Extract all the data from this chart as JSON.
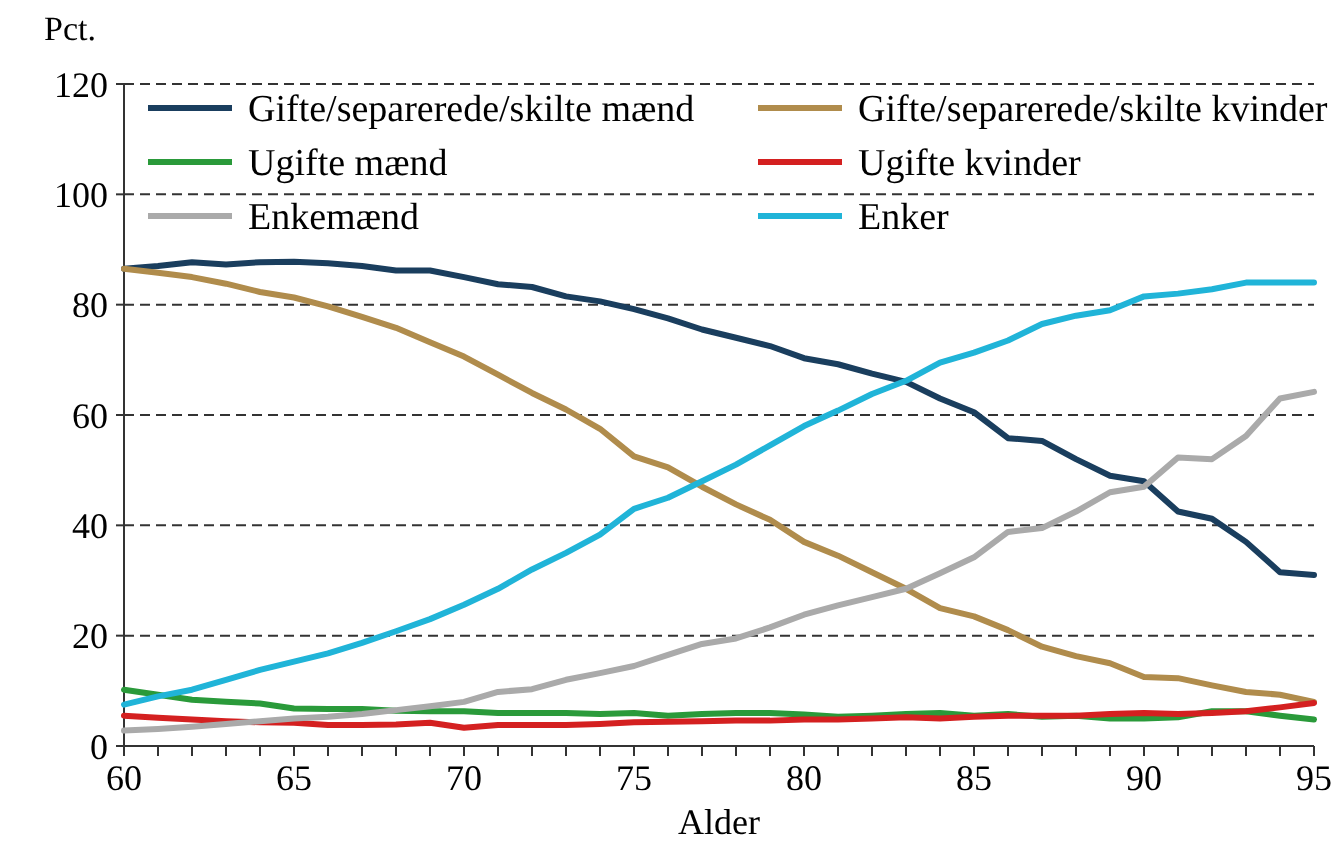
{
  "chart_data": {
    "type": "line",
    "ylabel": "Pct.",
    "xlabel": "Alder",
    "x": [
      60,
      61,
      62,
      63,
      64,
      65,
      66,
      67,
      68,
      69,
      70,
      71,
      72,
      73,
      74,
      75,
      76,
      77,
      78,
      79,
      80,
      81,
      82,
      83,
      84,
      85,
      86,
      87,
      88,
      89,
      90,
      91,
      92,
      93,
      94,
      95
    ],
    "series": [
      {
        "name": "Gifte/separerede/skilte mænd",
        "color": "#1a3e5e",
        "values": [
          86.5,
          87,
          87.7,
          87.3,
          87.7,
          87.8,
          87.5,
          87,
          86.2,
          86.2,
          85,
          83.7,
          83.2,
          81.5,
          80.6,
          79.2,
          77.5,
          75.5,
          74,
          72.5,
          70.3,
          69.2,
          67.5,
          66,
          63,
          60.5,
          55.8,
          55.3,
          52,
          49,
          48,
          42.5,
          41.2,
          37,
          31.5,
          31
        ]
      },
      {
        "name": "Gifte/separerede/skilte kvinder",
        "color": "#b08c4c",
        "values": [
          86.5,
          85.8,
          85,
          83.8,
          82.3,
          81.3,
          79.7,
          77.8,
          75.8,
          73.2,
          70.6,
          67.3,
          64,
          61,
          57.5,
          52.5,
          50.5,
          47,
          43.8,
          41,
          37,
          34.5,
          31.5,
          28.5,
          25,
          23.5,
          21,
          18,
          16.3,
          15,
          12.5,
          12.3,
          11,
          9.8,
          9.3,
          8
        ]
      },
      {
        "name": "Ugifte mænd",
        "color": "#2a9a3a",
        "values": [
          10.2,
          9.3,
          8.4,
          8,
          7.7,
          6.8,
          6.7,
          6.7,
          6.4,
          6.3,
          6.3,
          6,
          6,
          6,
          5.8,
          6,
          5.5,
          5.8,
          6,
          6,
          5.7,
          5.3,
          5.5,
          5.8,
          6,
          5.5,
          5.8,
          5.3,
          5.5,
          5,
          5,
          5.2,
          6.3,
          6.3,
          5.5,
          4.8
        ]
      },
      {
        "name": "Ugifte kvinder",
        "color": "#d42020",
        "values": [
          5.5,
          5.1,
          4.8,
          4.5,
          4.3,
          4.2,
          3.8,
          3.8,
          3.9,
          4.2,
          3.3,
          3.8,
          3.8,
          3.8,
          4,
          4.3,
          4.4,
          4.5,
          4.6,
          4.6,
          4.8,
          4.8,
          5,
          5.2,
          5,
          5.3,
          5.5,
          5.5,
          5.5,
          5.8,
          6,
          5.8,
          6,
          6.3,
          7,
          7.8
        ]
      },
      {
        "name": "Enkemænd",
        "color": "#aaaaaa",
        "values": [
          2.8,
          3.1,
          3.5,
          4,
          4.5,
          5,
          5.3,
          5.8,
          6.5,
          7.2,
          8,
          9.8,
          10.3,
          12,
          13.2,
          14.5,
          16.5,
          18.5,
          19.5,
          21.5,
          23.8,
          25.5,
          27,
          28.5,
          31.3,
          34.2,
          38.8,
          39.5,
          42.5,
          46,
          47,
          52.3,
          52,
          56.2,
          63,
          64.2
        ]
      },
      {
        "name": "Enker",
        "color": "#20b4d8",
        "values": [
          7.5,
          9,
          10.2,
          12,
          13.8,
          15.3,
          16.8,
          18.7,
          20.8,
          23,
          25.6,
          28.5,
          32,
          35,
          38.3,
          43,
          45,
          48,
          51,
          54.5,
          58,
          60.8,
          63.8,
          66.2,
          69.5,
          71.3,
          73.5,
          76.5,
          78,
          79,
          81.5,
          82,
          82.8,
          84,
          84,
          84
        ]
      }
    ],
    "xlim": [
      60,
      95
    ],
    "ylim": [
      0,
      120
    ],
    "xticks": [
      60,
      {
        "value": 61,
        "label": null
      },
      {
        "value": 62,
        "label": null
      },
      {
        "value": 63,
        "label": null
      },
      {
        "value": 64,
        "label": null
      },
      65,
      {
        "value": 66,
        "label": null
      },
      {
        "value": 67,
        "label": null
      },
      {
        "value": 68,
        "label": null
      },
      {
        "value": 69,
        "label": null
      },
      70,
      {
        "value": 71,
        "label": null
      },
      {
        "value": 72,
        "label": null
      },
      {
        "value": 73,
        "label": null
      },
      {
        "value": 74,
        "label": null
      },
      75,
      {
        "value": 76,
        "label": null
      },
      {
        "value": 77,
        "label": null
      },
      {
        "value": 78,
        "label": null
      },
      {
        "value": 79,
        "label": null
      },
      80,
      {
        "value": 81,
        "label": null
      },
      {
        "value": 82,
        "label": null
      },
      {
        "value": 83,
        "label": null
      },
      {
        "value": 84,
        "label": null
      },
      85,
      {
        "value": 86,
        "label": null
      },
      {
        "value": 87,
        "label": null
      },
      {
        "value": 88,
        "label": null
      },
      {
        "value": 89,
        "label": null
      },
      90,
      {
        "value": 91,
        "label": null
      },
      {
        "value": 92,
        "label": null
      },
      {
        "value": 93,
        "label": null
      },
      {
        "value": 94,
        "label": null
      },
      95
    ],
    "yticks": [
      0,
      20,
      40,
      60,
      80,
      100,
      120
    ],
    "grid": "y",
    "legend": "top",
    "marker": "none",
    "line_style": "solid"
  }
}
